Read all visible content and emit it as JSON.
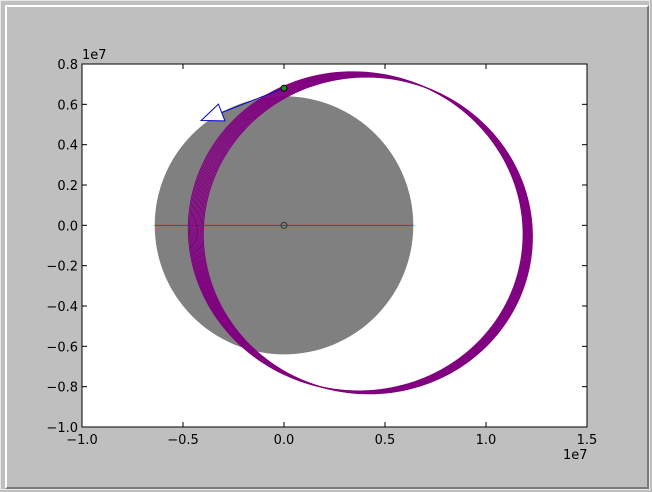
{
  "chart_data": {
    "type": "line",
    "title": "",
    "xlabel": "",
    "ylabel": "",
    "xlim": [
      -1.0,
      1.5
    ],
    "ylim": [
      -1.0,
      0.8
    ],
    "x_ticks": [
      "−1.0",
      "−0.5",
      "0.0",
      "0.5",
      "1.0",
      "1.5"
    ],
    "x_tick_values": [
      -1.0,
      -0.5,
      0.0,
      0.5,
      1.0,
      1.5
    ],
    "y_ticks": [
      "−1.0",
      "−0.8",
      "−0.6",
      "−0.4",
      "−0.2",
      "0.0",
      "0.2",
      "0.4",
      "0.6",
      "0.8"
    ],
    "y_tick_values": [
      -1.0,
      -0.8,
      -0.6,
      -0.4,
      -0.2,
      0.0,
      0.2,
      0.4,
      0.6,
      0.8
    ],
    "x_offset_label": "1e7",
    "y_offset_label": "1e7",
    "grid": false,
    "planet": {
      "center": [
        0.0,
        0.0
      ],
      "radius": 0.64,
      "color": "#808080"
    },
    "equator_line": {
      "x": [
        -0.64,
        0.64
      ],
      "y": [
        0.0,
        0.0
      ],
      "color": "#ff0000"
    },
    "center_marker": {
      "x": 0.0,
      "y": 0.0
    },
    "orbit": {
      "color": "#800080",
      "orbit_count": 14,
      "center_x": [
        0.355,
        0.415
      ],
      "center_y": [
        -0.03,
        -0.05
      ],
      "semi_major": [
        0.83,
        0.815
      ],
      "semi_minor": [
        0.79,
        0.785
      ],
      "rotation_deg": [
        -10,
        -6
      ]
    },
    "current_position": {
      "x": 0.0,
      "y": 0.68,
      "color": "#228b22"
    },
    "velocity_arrow": {
      "from": [
        0.0,
        0.68
      ],
      "to": [
        -0.41,
        0.52
      ],
      "color": "#0000cd"
    }
  }
}
